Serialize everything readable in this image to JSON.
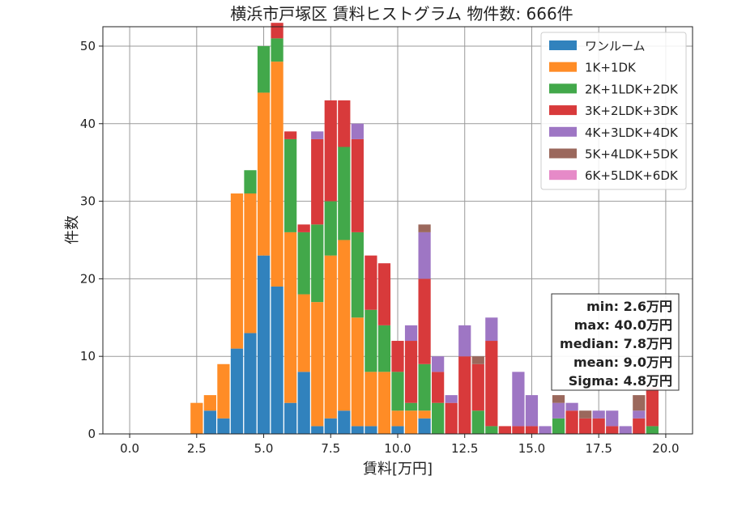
{
  "chart_data": {
    "type": "bar",
    "subtype": "stacked-histogram",
    "title": "横浜市戸塚区 賃料ヒストグラム 物件数: 666件",
    "xlabel": "賃料[万円]",
    "ylabel": "件数",
    "xlim": [
      -1.0,
      21.0
    ],
    "ylim": [
      0,
      52.5
    ],
    "xticks": [
      "0.0",
      "2.5",
      "5.0",
      "7.5",
      "10.0",
      "12.5",
      "15.0",
      "17.5",
      "20.0"
    ],
    "yticks": [
      "0",
      "10",
      "20",
      "30",
      "40",
      "50"
    ],
    "grid": true,
    "legend_position": "top-right",
    "bin_width": 0.5,
    "bins": [
      2.5,
      3.0,
      3.5,
      4.0,
      4.5,
      5.0,
      5.5,
      6.0,
      6.5,
      7.0,
      7.5,
      8.0,
      8.5,
      9.0,
      9.5,
      10.0,
      10.5,
      11.0,
      11.5,
      12.0,
      12.5,
      13.0,
      13.5,
      14.0,
      14.5,
      15.0,
      15.5,
      16.0,
      16.5,
      17.0,
      17.5,
      18.0,
      18.5,
      19.0,
      19.5
    ],
    "series": [
      {
        "name": "ワンルーム",
        "color": "#3182bd",
        "values": [
          0,
          3,
          2,
          11,
          13,
          23,
          19,
          4,
          8,
          1,
          2,
          3,
          1,
          1,
          0,
          1,
          0,
          2,
          0,
          0,
          0,
          0,
          0,
          0,
          0,
          0,
          0,
          0,
          0,
          0,
          0,
          0,
          0,
          0,
          0
        ]
      },
      {
        "name": "1K+1DK",
        "color": "#ff8c26",
        "values": [
          4,
          2,
          7,
          20,
          18,
          21,
          29,
          22,
          10,
          16,
          21,
          22,
          14,
          7,
          8,
          2,
          3,
          1,
          0,
          0,
          0,
          0,
          0,
          0,
          0,
          0,
          0,
          0,
          0,
          0,
          0,
          0,
          0,
          0,
          0
        ]
      },
      {
        "name": "2K+1LDK+2DK",
        "color": "#42a84a",
        "values": [
          0,
          0,
          0,
          0,
          3,
          6,
          3,
          12,
          8,
          10,
          7,
          12,
          11,
          8,
          6,
          5,
          1,
          6,
          4,
          0,
          0,
          3,
          1,
          0,
          0,
          0,
          0,
          2,
          0,
          0,
          0,
          0,
          0,
          0,
          1
        ]
      },
      {
        "name": "3K+2LDK+3DK",
        "color": "#d83a3b",
        "values": [
          0,
          0,
          0,
          0,
          0,
          0,
          2,
          1,
          1,
          11,
          13,
          6,
          12,
          7,
          8,
          4,
          8,
          11,
          4,
          4,
          10,
          6,
          11,
          1,
          1,
          1,
          0,
          0,
          3,
          2,
          2,
          1,
          0,
          2,
          5
        ]
      },
      {
        "name": "4K+3LDK+4DK",
        "color": "#9e76c4",
        "values": [
          0,
          0,
          0,
          0,
          0,
          0,
          0,
          0,
          0,
          1,
          0,
          0,
          2,
          0,
          0,
          0,
          2,
          6,
          2,
          1,
          4,
          0,
          3,
          0,
          7,
          4,
          1,
          2,
          1,
          0,
          1,
          2,
          1,
          1,
          0
        ]
      },
      {
        "name": "5K+4LDK+5DK",
        "color": "#9b685c",
        "values": [
          0,
          0,
          0,
          0,
          0,
          0,
          0,
          0,
          0,
          0,
          0,
          0,
          0,
          0,
          0,
          0,
          0,
          1,
          0,
          0,
          0,
          1,
          0,
          0,
          0,
          0,
          0,
          1,
          0,
          1,
          0,
          0,
          0,
          2,
          0
        ]
      },
      {
        "name": "6K+5LDK+6DK",
        "color": "#e68ac8",
        "values": [
          0,
          0,
          0,
          0,
          0,
          0,
          0,
          0,
          0,
          0,
          0,
          0,
          0,
          0,
          0,
          0,
          0,
          0,
          0,
          0,
          0,
          0,
          0,
          0,
          0,
          0,
          0,
          0,
          0,
          0,
          0,
          0,
          0,
          0,
          0
        ]
      }
    ],
    "stats": [
      "min: 2.6万円",
      "max: 40.0万円",
      "median: 7.8万円",
      "mean: 9.0万円",
      "Sigma: 4.8万円"
    ]
  }
}
